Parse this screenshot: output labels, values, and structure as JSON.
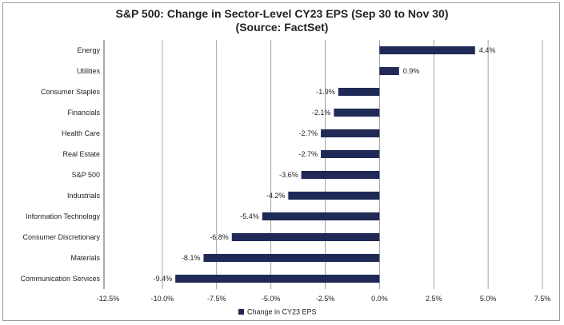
{
  "chart_data": {
    "type": "bar",
    "orientation": "horizontal",
    "title": "S&P 500: Change in Sector-Level CY23 EPS (Sep 30 to Nov 30)",
    "subtitle": "(Source: FactSet)",
    "categories": [
      "Energy",
      "Utilities",
      "Consumer Staples",
      "Financials",
      "Health Care",
      "Real Estate",
      "S&P 500",
      "Industrials",
      "Information Technology",
      "Consumer Discretionary",
      "Materials",
      "Communication Services"
    ],
    "series": [
      {
        "name": "Change in CY23 EPS",
        "values": [
          4.4,
          0.9,
          -1.9,
          -2.1,
          -2.7,
          -2.7,
          -3.6,
          -4.2,
          -5.4,
          -6.8,
          -8.1,
          -9.4
        ]
      }
    ],
    "data_labels": [
      "4.4%",
      "0.9%",
      "-1.9%",
      "-2.1%",
      "-2.7%",
      "-2.7%",
      "-3.6%",
      "-4.2%",
      "-5.4%",
      "-6.8%",
      "-8.1%",
      "-9.4%"
    ],
    "xlim": [
      -12.5,
      7.5
    ],
    "x_ticks": [
      -12.5,
      -10.0,
      -7.5,
      -5.0,
      -2.5,
      0.0,
      2.5,
      5.0,
      7.5
    ],
    "x_tick_labels": [
      "-12.5%",
      "-10.0%",
      "-7.5%",
      "-5.0%",
      "-2.5%",
      "0.0%",
      "2.5%",
      "5.0%",
      "7.5%"
    ],
    "grid": "vertical",
    "legend": "bottom",
    "colors": {
      "bar": "#1f2a56",
      "grid": "#8c8c8c",
      "text": "#222222"
    }
  }
}
